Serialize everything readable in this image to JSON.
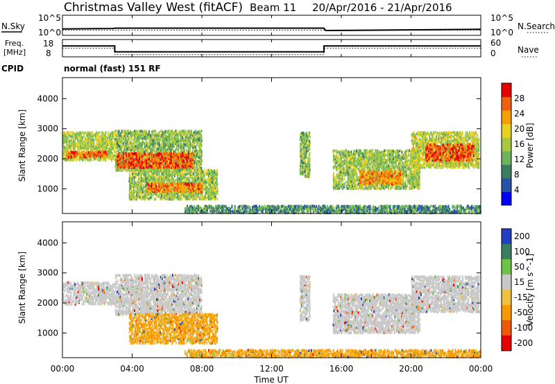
{
  "header": {
    "station": "Christmas Valley West (fitACF)",
    "beam": "Beam 11",
    "date_range": "20/Apr/2016 - 21/Apr/2016"
  },
  "nsky_panel": {
    "left_label": "N.Sky",
    "right_label": "N.Search",
    "left_top": "10^5",
    "left_bottom": "10^0",
    "right_top": "10^5",
    "right_bottom": "10^0"
  },
  "freq_panel": {
    "left_label_1": "Freq.",
    "left_label_2": "[MHz]",
    "right_label": "Nave",
    "left_top": "18",
    "left_bottom": "8",
    "right_top": "60",
    "right_bottom": "0"
  },
  "cpid": {
    "label": "CPID",
    "text": "normal (fast) 151 RF"
  },
  "chart_data": [
    {
      "type": "line",
      "panel": "noise",
      "series": [
        {
          "name": "N.Sky",
          "x": [
            0,
            2.9,
            3.0,
            15.0,
            15.1,
            24
          ],
          "y": [
            1.6,
            1.7,
            1.8,
            1.8,
            1.2,
            1.5
          ]
        },
        {
          "name": "N.Search",
          "x": [
            0,
            24
          ],
          "y": [
            1.3,
            1.3
          ]
        }
      ],
      "xlim": [
        0,
        24
      ],
      "ylim_left": [
        0,
        5
      ]
    },
    {
      "type": "line",
      "panel": "frequency",
      "series": [
        {
          "name": "Freq.",
          "x": [
            0,
            3.0,
            3.0,
            15.0,
            15.0,
            24
          ],
          "y": [
            14.3,
            14.3,
            10.9,
            10.9,
            14.3,
            14.3
          ]
        },
        {
          "name": "Nave",
          "x": [
            0,
            3.0,
            3.0,
            15.0,
            15.0,
            24
          ],
          "y": [
            30,
            30,
            8,
            8,
            30,
            30
          ]
        }
      ],
      "xlim": [
        0,
        24
      ],
      "ylim_left": [
        8,
        18
      ],
      "ylim_right": [
        0,
        60
      ]
    },
    {
      "type": "heatmap",
      "panel": "power",
      "ylabel": "Slant Range [km]",
      "yticks": [
        "1000",
        "2000",
        "3000",
        "4000"
      ],
      "ylim": [
        180,
        4700
      ],
      "xlim": [
        0,
        24
      ],
      "colorbar_label": "Power [dB]",
      "colorbar_ticks": [
        "4",
        "8",
        "12",
        "16",
        "20",
        "24",
        "28"
      ],
      "colorbar_range": [
        0,
        32
      ],
      "colorbar_colors": [
        "#0000ff",
        "#2552a8",
        "#3a7e62",
        "#6db45a",
        "#a8c840",
        "#e8d020",
        "#f5a000",
        "#f06010",
        "#e80000"
      ],
      "regions": [
        {
          "t": [
            0.0,
            3.0
          ],
          "r": [
            1950,
            2900
          ],
          "value": 16
        },
        {
          "t": [
            0.2,
            2.6
          ],
          "r": [
            2050,
            2250
          ],
          "value": 26
        },
        {
          "t": [
            3.0,
            8.0
          ],
          "r": [
            1600,
            2950
          ],
          "value": 14
        },
        {
          "t": [
            3.1,
            7.5
          ],
          "r": [
            1700,
            2200
          ],
          "value": 27
        },
        {
          "t": [
            3.8,
            8.9
          ],
          "r": [
            650,
            1650
          ],
          "value": 15
        },
        {
          "t": [
            4.8,
            8.0
          ],
          "r": [
            900,
            1200
          ],
          "value": 25
        },
        {
          "t": [
            13.6,
            14.2
          ],
          "r": [
            1400,
            2900
          ],
          "value": 14
        },
        {
          "t": [
            15.5,
            20.5
          ],
          "r": [
            1000,
            2300
          ],
          "value": 15
        },
        {
          "t": [
            17.0,
            19.5
          ],
          "r": [
            1150,
            1600
          ],
          "value": 24
        },
        {
          "t": [
            20.0,
            23.9
          ],
          "r": [
            1700,
            2900
          ],
          "value": 17
        },
        {
          "t": [
            20.8,
            23.6
          ],
          "r": [
            1950,
            2500
          ],
          "value": 27
        },
        {
          "t": [
            7.0,
            24.0
          ],
          "r": [
            200,
            450
          ],
          "value": 10
        }
      ]
    },
    {
      "type": "heatmap",
      "panel": "velocity",
      "ylabel": "Slant Range [km]",
      "yticks": [
        "1000",
        "2000",
        "3000",
        "4000"
      ],
      "ylim": [
        180,
        4700
      ],
      "xlabel": "Time UT",
      "xticks": [
        "00:00",
        "04:00",
        "08:00",
        "12:00",
        "16:00",
        "20:00",
        "00:00"
      ],
      "xlim": [
        0,
        24
      ],
      "colorbar_label": "Velocity [m s^-1]",
      "colorbar_ticks": [
        "200",
        "100",
        "50",
        "15",
        "-15",
        "-50",
        "-100",
        "-200"
      ],
      "colorbar_colors": [
        "#2040c0",
        "#3a7e62",
        "#6cc444",
        "#c8c8c8",
        "#f2c040",
        "#f59a00",
        "#f05808",
        "#e80000"
      ],
      "regions": [
        {
          "t": [
            0.0,
            3.0
          ],
          "r": [
            1950,
            2700
          ],
          "velocity": 0
        },
        {
          "t": [
            3.0,
            8.0
          ],
          "r": [
            1600,
            2950
          ],
          "velocity": 0
        },
        {
          "t": [
            3.8,
            8.9
          ],
          "r": [
            650,
            1650
          ],
          "velocity": -60
        },
        {
          "t": [
            13.6,
            14.2
          ],
          "r": [
            1400,
            2900
          ],
          "velocity": 0
        },
        {
          "t": [
            15.5,
            20.5
          ],
          "r": [
            1000,
            2300
          ],
          "velocity": 0
        },
        {
          "t": [
            20.0,
            23.9
          ],
          "r": [
            1700,
            2900
          ],
          "velocity": 0
        },
        {
          "t": [
            7.0,
            24.0
          ],
          "r": [
            200,
            450
          ],
          "velocity": -40
        }
      ]
    }
  ]
}
